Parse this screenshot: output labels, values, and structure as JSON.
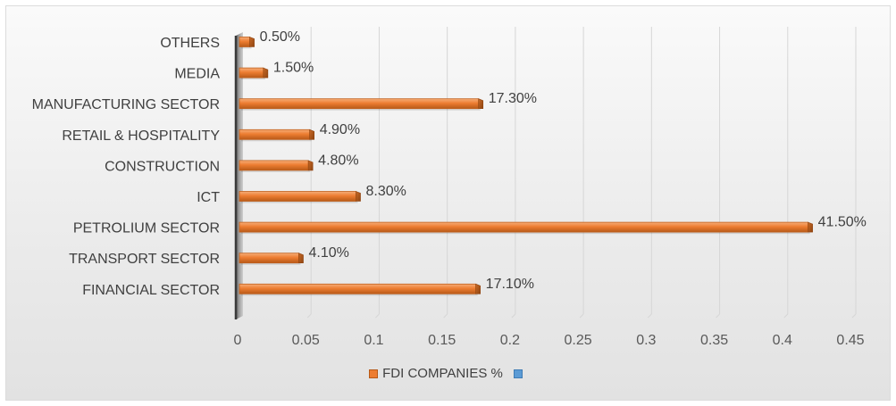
{
  "chart_data": {
    "type": "bar",
    "orientation": "horizontal",
    "categories": [
      "OTHERS",
      "MEDIA",
      "MANUFACTURING SECTOR",
      "RETAIL & HOSPITALITY",
      "CONSTRUCTION",
      "ICT",
      "PETROLIUM SECTOR",
      "TRANSPORT SECTOR",
      "FINANCIAL SECTOR"
    ],
    "series": [
      {
        "name": "FDI COMPANIES %",
        "color": "#ed7d31",
        "values": [
          0.005,
          0.015,
          0.173,
          0.049,
          0.048,
          0.083,
          0.415,
          0.041,
          0.171
        ],
        "labels": [
          "0.50%",
          "1.50%",
          "17.30%",
          "4.90%",
          "4.80%",
          "8.30%",
          "41.50%",
          "4.10%",
          "17.10%"
        ]
      }
    ],
    "xlim": [
      0,
      0.45
    ],
    "x_ticks": [
      "0",
      "0.05",
      "0.1",
      "0.15",
      "0.2",
      "0.25",
      "0.3",
      "0.35",
      "0.4",
      "0.45"
    ],
    "grid": true,
    "legend": {
      "position": "bottom",
      "entries": [
        {
          "label": "FDI COMPANIES %",
          "color": "#ed7d31"
        },
        {
          "label": "",
          "color": "#5b9bd5"
        }
      ]
    }
  }
}
